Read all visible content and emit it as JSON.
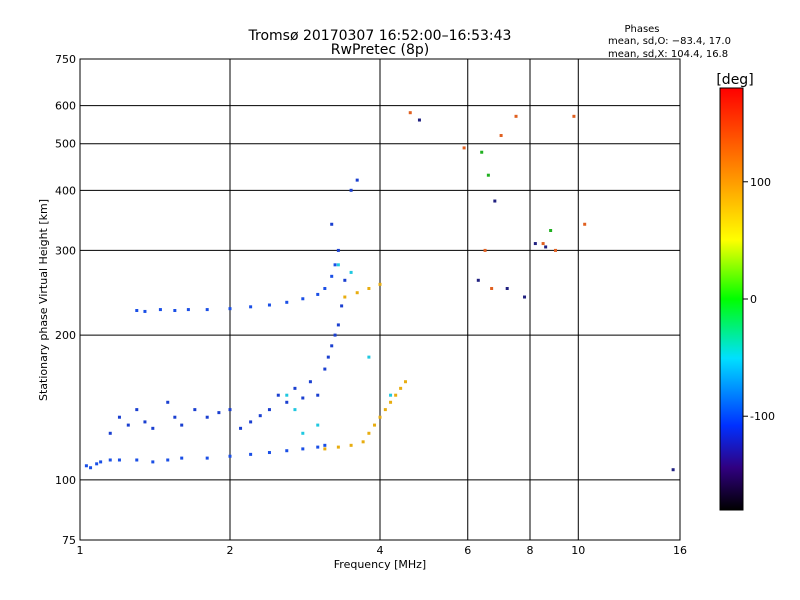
{
  "chart_data": {
    "type": "scatter",
    "title": "Tromsø 20170307 16:52:00–16:53:43",
    "subtitle": "RwPretec (8p)",
    "xlabel": "Frequency [MHz]",
    "ylabel": "Stationary phase Virtual Height [km]",
    "x_scale": "log",
    "y_scale": "log",
    "xlim": [
      1,
      16
    ],
    "ylim": [
      75,
      750
    ],
    "x_ticks": [
      1,
      2,
      4,
      6,
      8,
      10,
      16
    ],
    "y_ticks": [
      75,
      100,
      200,
      300,
      400,
      500,
      600,
      750
    ],
    "grid": true,
    "info_box": {
      "heading": "Phases",
      "line_o": "mean, sd,O: −83.4, 17.0",
      "line_x": "mean, sd,X: 104.4, 16.8"
    },
    "colorbar": {
      "label": "[deg]",
      "range": [
        -180,
        180
      ],
      "ticks": [
        100,
        0,
        -100
      ]
    },
    "series": [
      {
        "color": "#1a4fe6",
        "points": [
          [
            1.03,
            107
          ],
          [
            1.05,
            106
          ],
          [
            1.08,
            108
          ],
          [
            1.1,
            109
          ],
          [
            1.15,
            110
          ],
          [
            1.2,
            110
          ],
          [
            1.3,
            110
          ],
          [
            1.4,
            109
          ],
          [
            1.5,
            110
          ],
          [
            1.6,
            111
          ],
          [
            1.8,
            111
          ],
          [
            2.0,
            112
          ],
          [
            2.2,
            113
          ],
          [
            2.4,
            114
          ],
          [
            2.6,
            115
          ],
          [
            2.8,
            116
          ],
          [
            3.0,
            117
          ],
          [
            3.1,
            118
          ]
        ]
      },
      {
        "color": "#1a4fe6",
        "points": [
          [
            1.3,
            225
          ],
          [
            1.35,
            224
          ],
          [
            1.45,
            226
          ],
          [
            1.55,
            225
          ],
          [
            1.65,
            226
          ],
          [
            1.8,
            226
          ],
          [
            2.0,
            227
          ],
          [
            2.2,
            229
          ],
          [
            2.4,
            231
          ],
          [
            2.6,
            234
          ],
          [
            2.8,
            238
          ],
          [
            3.0,
            243
          ],
          [
            3.1,
            250
          ],
          [
            3.2,
            265
          ],
          [
            3.25,
            280
          ]
        ]
      },
      {
        "color": "#1a3fd0",
        "points": [
          [
            1.15,
            125
          ],
          [
            1.2,
            135
          ],
          [
            1.25,
            130
          ],
          [
            1.3,
            140
          ],
          [
            1.35,
            132
          ],
          [
            1.4,
            128
          ],
          [
            1.5,
            145
          ],
          [
            1.55,
            135
          ],
          [
            1.6,
            130
          ],
          [
            1.7,
            140
          ],
          [
            1.8,
            135
          ],
          [
            1.9,
            138
          ],
          [
            2.0,
            140
          ],
          [
            2.1,
            128
          ],
          [
            2.2,
            132
          ],
          [
            2.3,
            136
          ],
          [
            2.4,
            140
          ],
          [
            2.5,
            150
          ],
          [
            2.6,
            145
          ],
          [
            2.7,
            155
          ],
          [
            2.8,
            148
          ],
          [
            2.9,
            160
          ],
          [
            3.0,
            150
          ],
          [
            3.1,
            170
          ],
          [
            3.15,
            180
          ],
          [
            3.2,
            190
          ],
          [
            3.25,
            200
          ],
          [
            3.3,
            210
          ],
          [
            3.35,
            230
          ],
          [
            3.4,
            260
          ],
          [
            3.3,
            300
          ],
          [
            3.2,
            340
          ],
          [
            3.5,
            400
          ],
          [
            3.6,
            420
          ]
        ]
      },
      {
        "color": "#e8ad10",
        "points": [
          [
            3.1,
            116
          ],
          [
            3.3,
            117
          ],
          [
            3.5,
            118
          ],
          [
            3.7,
            120
          ],
          [
            3.8,
            125
          ],
          [
            3.9,
            130
          ],
          [
            4.0,
            135
          ],
          [
            4.1,
            140
          ],
          [
            4.2,
            145
          ],
          [
            4.3,
            150
          ],
          [
            4.4,
            155
          ],
          [
            4.5,
            160
          ],
          [
            3.4,
            240
          ],
          [
            3.6,
            245
          ],
          [
            3.8,
            250
          ],
          [
            4.0,
            255
          ]
        ]
      },
      {
        "color": "#20c8e0",
        "points": [
          [
            2.6,
            150
          ],
          [
            2.7,
            140
          ],
          [
            2.8,
            125
          ],
          [
            3.0,
            130
          ],
          [
            3.3,
            280
          ],
          [
            3.5,
            270
          ],
          [
            3.8,
            180
          ],
          [
            4.2,
            150
          ]
        ]
      },
      {
        "color": "#e06020",
        "points": [
          [
            4.6,
            580
          ],
          [
            5.9,
            490
          ],
          [
            6.5,
            300
          ],
          [
            6.7,
            250
          ],
          [
            7.0,
            520
          ],
          [
            7.5,
            570
          ],
          [
            8.5,
            310
          ],
          [
            9.0,
            300
          ],
          [
            9.8,
            570
          ],
          [
            10.3,
            340
          ]
        ]
      },
      {
        "color": "#20b020",
        "points": [
          [
            6.4,
            480
          ],
          [
            6.6,
            430
          ],
          [
            8.8,
            330
          ]
        ]
      },
      {
        "color": "#202080",
        "points": [
          [
            4.8,
            560
          ],
          [
            6.3,
            260
          ],
          [
            6.8,
            380
          ],
          [
            7.2,
            250
          ],
          [
            7.8,
            240
          ],
          [
            8.2,
            310
          ],
          [
            8.6,
            305
          ],
          [
            15.5,
            105
          ]
        ]
      }
    ]
  }
}
